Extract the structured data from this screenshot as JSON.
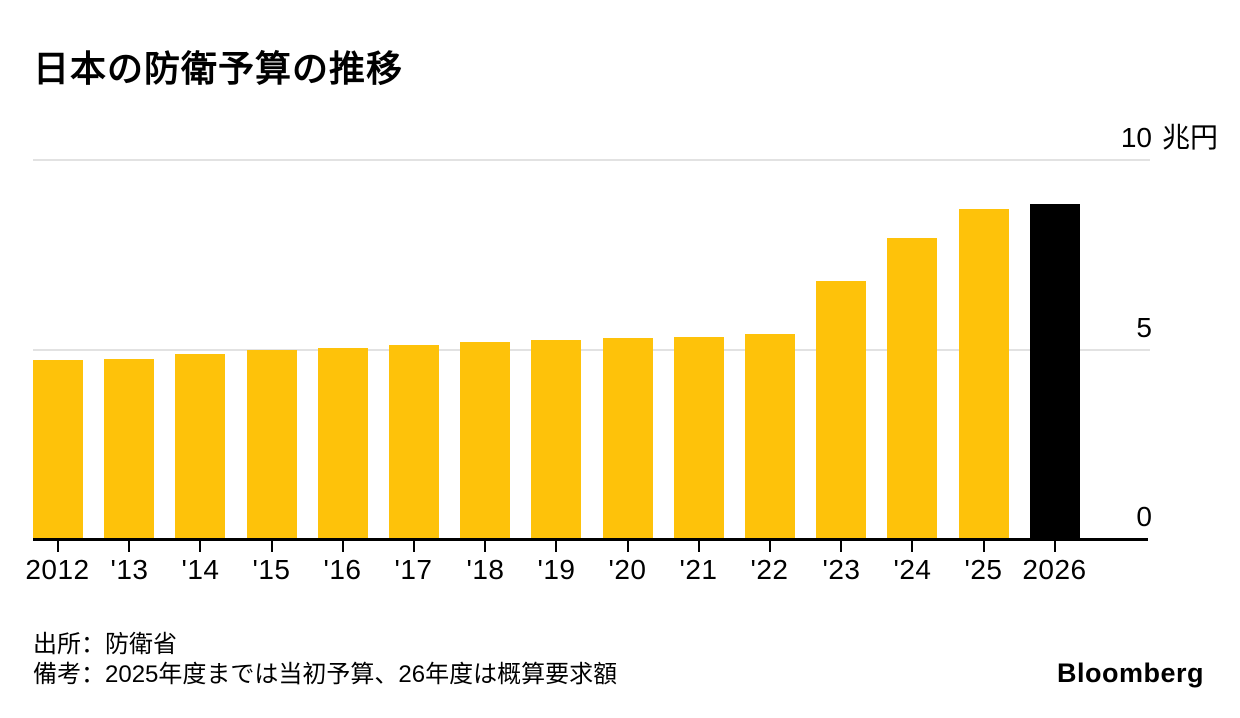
{
  "title": "日本の防衛予算の推移",
  "footer": {
    "source": "出所：防衛省",
    "note": "備考：2025年度までは当初予算、26年度は概算要求額",
    "brand": "Bloomberg"
  },
  "chart_data": {
    "type": "bar",
    "title": "日本の防衛予算の推移",
    "unit": "兆円",
    "categories": [
      "2012",
      "'13",
      "'14",
      "'15",
      "'16",
      "'17",
      "'18",
      "'19",
      "'20",
      "'21",
      "'22",
      "'23",
      "'24",
      "'25",
      "2026"
    ],
    "values": [
      4.71,
      4.75,
      4.88,
      4.98,
      5.05,
      5.13,
      5.19,
      5.26,
      5.31,
      5.34,
      5.4,
      6.82,
      7.95,
      8.7,
      8.84
    ],
    "highlight_index": 14,
    "colors": {
      "bar_default": "#FEC20A",
      "bar_highlight": "#000000",
      "gridline": "#e2e2e2",
      "axis": "#000000"
    },
    "ylim": [
      0,
      10
    ],
    "grid_values": [
      5,
      10
    ],
    "y_ticks": [
      {
        "value": 10,
        "num": "10",
        "suffix": "兆円"
      },
      {
        "value": 5,
        "num": "5",
        "suffix": ""
      },
      {
        "value": 0,
        "num": "0",
        "suffix": ""
      }
    ],
    "xlabel": "",
    "ylabel": "兆円",
    "legend": "none",
    "grid": true
  }
}
